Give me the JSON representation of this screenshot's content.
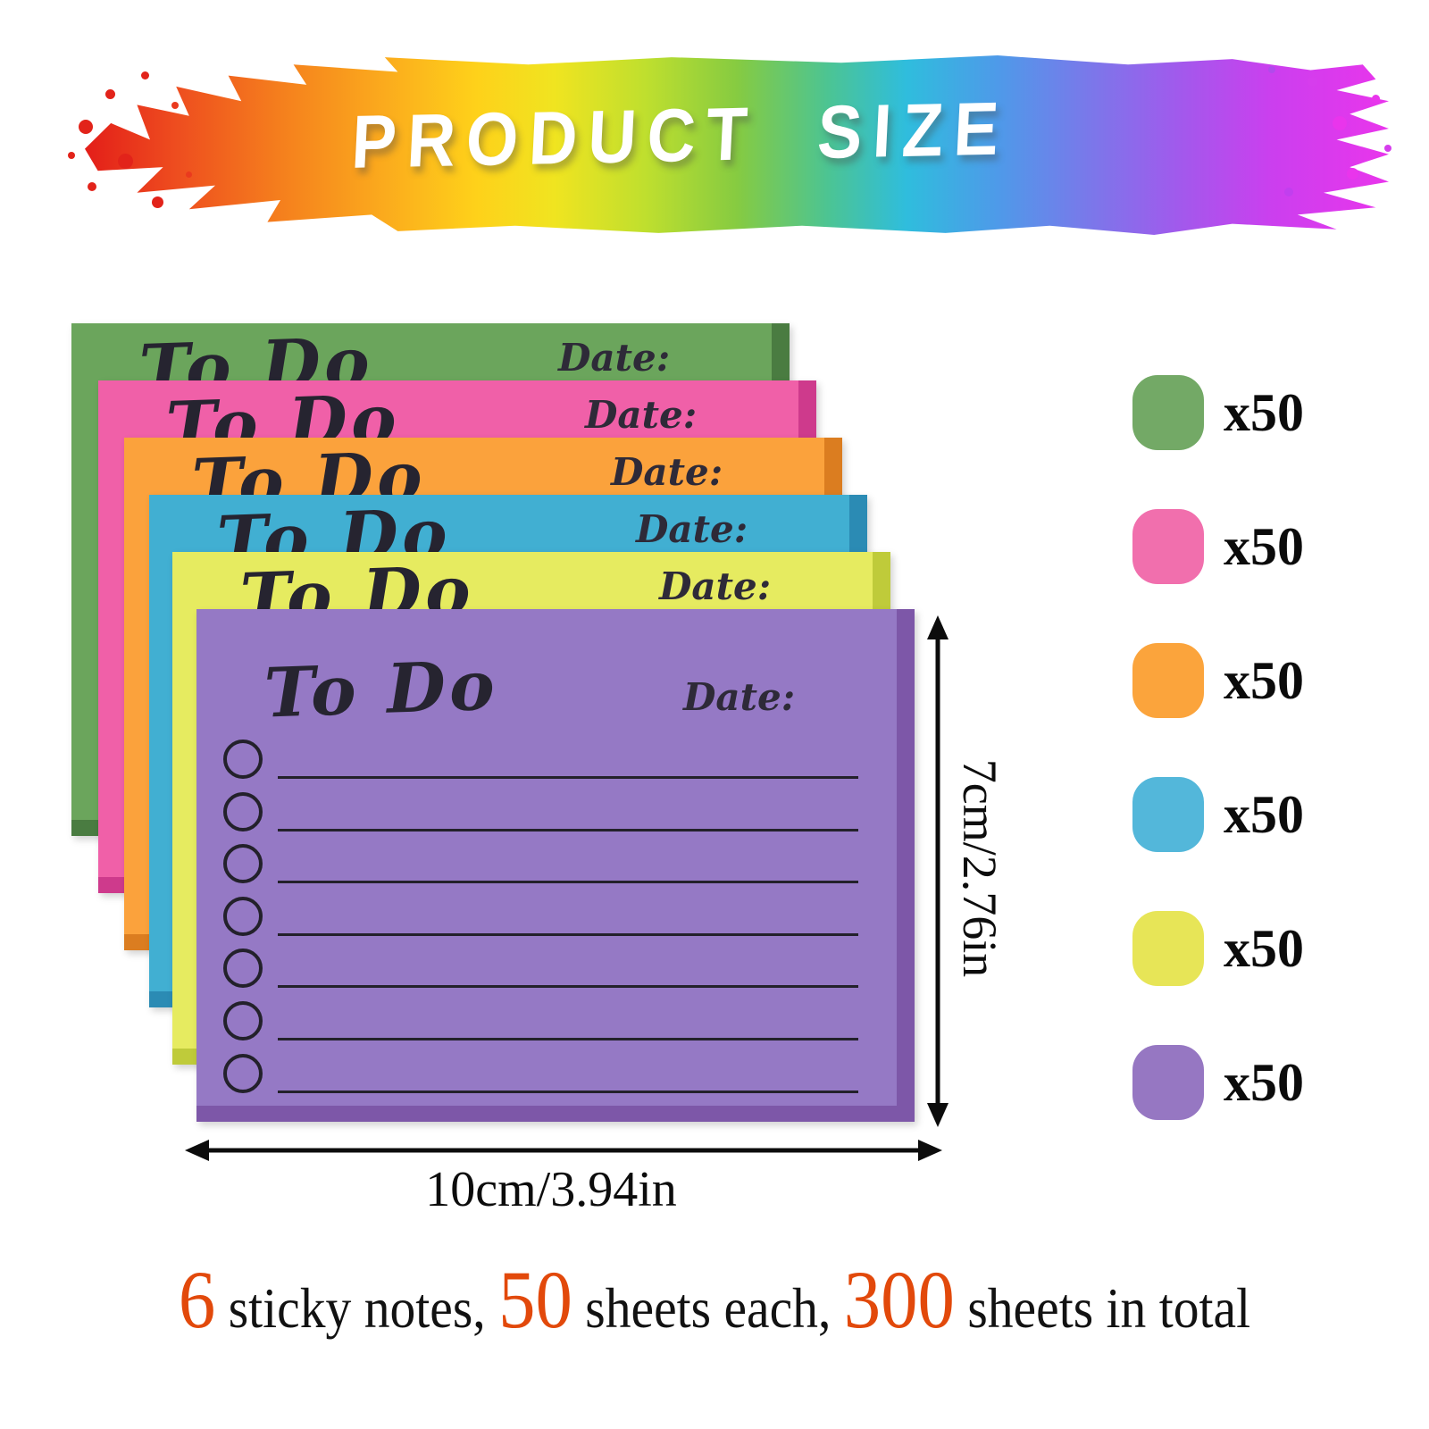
{
  "header": {
    "title": "PRODUCT SIZE"
  },
  "pad": {
    "title": "To Do",
    "date_label": "Date:",
    "rows": 7,
    "stack": [
      {
        "name": "green",
        "fill": "#6BA55C",
        "edge": "#4A7C41"
      },
      {
        "name": "pink",
        "fill": "#F060A8",
        "edge": "#CE3A8C"
      },
      {
        "name": "orange",
        "fill": "#FBA23C",
        "edge": "#DB7D20"
      },
      {
        "name": "blue",
        "fill": "#41AFD2",
        "edge": "#2B8BB4"
      },
      {
        "name": "yellow",
        "fill": "#E6EB60",
        "edge": "#BFCB3A"
      },
      {
        "name": "purple",
        "fill": "#9579C5",
        "edge": "#7D57A8"
      }
    ]
  },
  "dimensions": {
    "height_label": "7cm/2.76in",
    "width_label": "10cm/3.94in"
  },
  "legend": {
    "count_label": "x50",
    "items": [
      {
        "name": "green",
        "fill": "#73A966"
      },
      {
        "name": "pink",
        "fill": "#F16FAD"
      },
      {
        "name": "orange",
        "fill": "#FBA43C"
      },
      {
        "name": "blue",
        "fill": "#53B7DA"
      },
      {
        "name": "yellow",
        "fill": "#E7E557"
      },
      {
        "name": "purple",
        "fill": "#9677C2"
      }
    ]
  },
  "footer": {
    "highlight_color": "#E2490B",
    "segments": [
      {
        "text": "6",
        "highlight": true
      },
      {
        "text": " sticky notes, ",
        "highlight": false
      },
      {
        "text": "50",
        "highlight": true
      },
      {
        "text": " sheets each, ",
        "highlight": false
      },
      {
        "text": "300",
        "highlight": true
      },
      {
        "text": " sheets in total",
        "highlight": false
      }
    ]
  }
}
